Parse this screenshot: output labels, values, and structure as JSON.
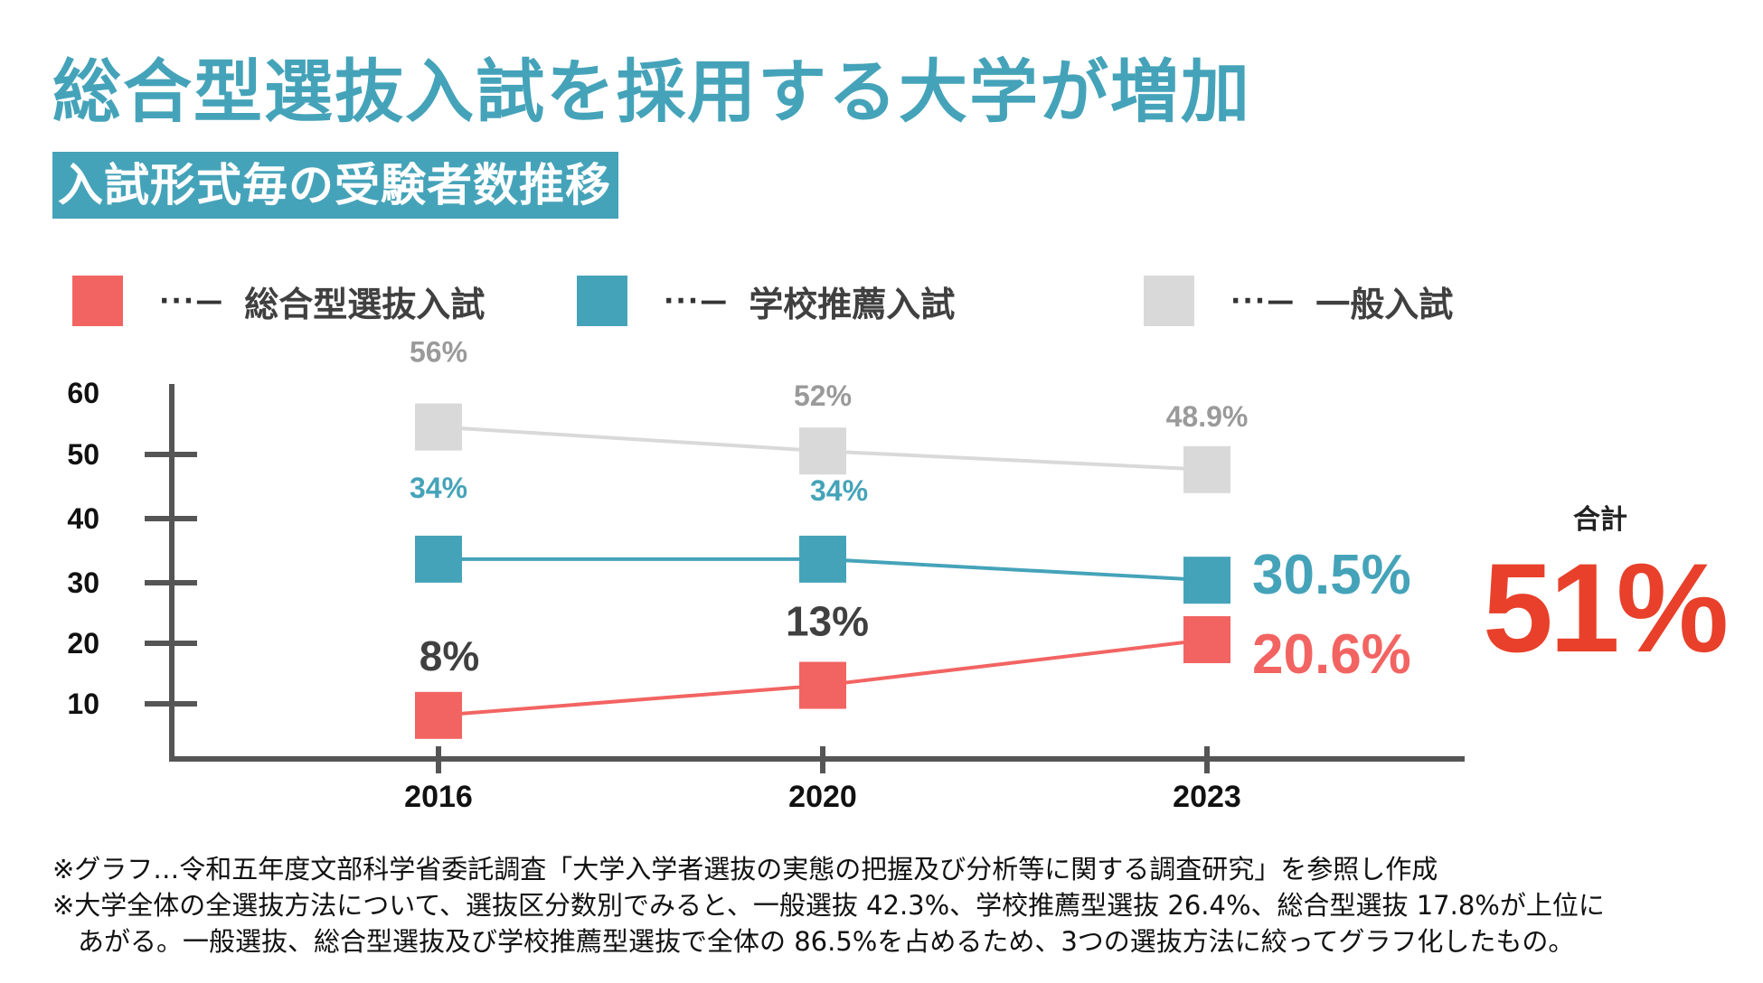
{
  "title": "総合型選抜入試を採用する大学が増加",
  "subtitle": "入試形式毎の受験者数推移",
  "legend": [
    {
      "line": "···—",
      "label": "総合型選抜入試",
      "color": "#F26462"
    },
    {
      "line": "···—",
      "label": "学校推薦入試",
      "color": "#45A3B9"
    },
    {
      "line": "···—",
      "label": "一般入試",
      "color": "#D9D9D9"
    }
  ],
  "total": {
    "label": "合計",
    "value": "51%",
    "color": "#E8402A"
  },
  "notes": [
    "※グラフ…令和五年度文部科学省委託調査「大学入学者選抜の実態の把握及び分析等に関する調査研究」を参照し作成",
    "※大学全体の全選抜方法について、選抜区分数別でみると、一般選抜 42.3%、学校推薦型選抜 26.4%、総合型選抜 17.8%が上位に",
    "あがる。一般選抜、総合型選抜及び学校推薦型選抜で全体の 86.5%を占めるため、3つの選抜方法に絞ってグラフ化したもの。"
  ],
  "chart_data": {
    "type": "line",
    "title": "入試形式毎の受験者数推移",
    "categories": [
      "2016",
      "2020",
      "2023"
    ],
    "y_ticks": [
      "60",
      "50",
      "40",
      "30",
      "20",
      "10"
    ],
    "ylim": [
      0,
      60
    ],
    "series": [
      {
        "name": "一般入試",
        "values": [
          56,
          52,
          48.9
        ],
        "labels": [
          "56%",
          "52%",
          "48.9%"
        ],
        "color": "#D9D9D9",
        "label_color": "#9A9A9A"
      },
      {
        "name": "学校推薦入試",
        "values": [
          34,
          34,
          30.5
        ],
        "labels": [
          "34%",
          "34%",
          "30.5%"
        ],
        "color": "#45A3B9",
        "label_color": "#45A3B9"
      },
      {
        "name": "総合型選抜入試",
        "values": [
          8,
          13,
          20.6
        ],
        "labels": [
          "8%",
          "13%",
          "20.6%"
        ],
        "color": "#F26462",
        "label_color": "#404040"
      }
    ]
  }
}
